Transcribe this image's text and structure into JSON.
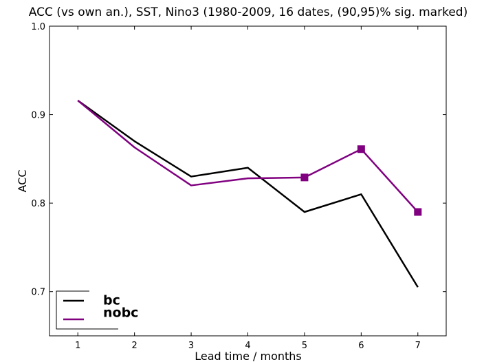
{
  "chart_data": {
    "type": "line",
    "title": "ACC (vs own an.), SST, Nino3 (1980-2009, 16 dates, (90,95)% sig. marked)",
    "xlabel": "Lead time / months",
    "ylabel": "ACC",
    "xlim": [
      0.5,
      7.5
    ],
    "ylim": [
      0.65,
      1.0
    ],
    "xticks": [
      1,
      2,
      3,
      4,
      5,
      6,
      7
    ],
    "yticks": [
      0.7,
      0.8,
      0.9,
      1.0
    ],
    "xtick_labels": [
      "1",
      "2",
      "3",
      "4",
      "5",
      "6",
      "7"
    ],
    "ytick_labels": [
      "0.7",
      "0.8",
      "0.9",
      "1.0"
    ],
    "grid": false,
    "legend_position": "lower-left",
    "series": [
      {
        "name": "bc",
        "color": "#000000",
        "x": [
          1,
          2,
          3,
          4,
          5,
          6,
          7
        ],
        "y": [
          0.916,
          0.87,
          0.83,
          0.84,
          0.79,
          0.81,
          0.705
        ],
        "significant": [
          false,
          false,
          false,
          false,
          false,
          false,
          false
        ]
      },
      {
        "name": "nobc",
        "color": "#800080",
        "x": [
          1,
          2,
          3,
          4,
          5,
          6,
          7
        ],
        "y": [
          0.916,
          0.863,
          0.82,
          0.828,
          0.829,
          0.861,
          0.79
        ],
        "significant": [
          false,
          false,
          false,
          false,
          true,
          true,
          true
        ]
      }
    ]
  }
}
